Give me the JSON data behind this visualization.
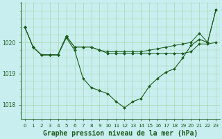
{
  "title": "Graphe pression niveau de la mer (hPa)",
  "bg_color": "#c8eef0",
  "line_color": "#1a5c1a",
  "grid_color": "#a8d8a8",
  "hours": [
    0,
    1,
    2,
    3,
    4,
    5,
    6,
    7,
    8,
    9,
    10,
    11,
    12,
    13,
    14,
    15,
    16,
    17,
    18,
    19,
    20,
    21,
    22,
    23
  ],
  "series_top": [
    1020.5,
    1019.85,
    1019.6,
    1019.6,
    1019.6,
    1020.2,
    1019.85,
    1019.85,
    1019.85,
    1019.75,
    1019.7,
    1019.7,
    1019.7,
    1019.7,
    1019.7,
    1019.75,
    1019.8,
    1019.85,
    1019.9,
    1019.95,
    1020.0,
    1020.3,
    1020.0,
    1021.05
  ],
  "series_mid": [
    1020.5,
    1019.85,
    1019.6,
    1019.6,
    1019.6,
    1020.2,
    1019.85,
    1019.85,
    1019.85,
    1019.75,
    1019.65,
    1019.65,
    1019.65,
    1019.65,
    1019.65,
    1019.65,
    1019.65,
    1019.65,
    1019.65,
    1019.65,
    1019.7,
    1019.95,
    1019.95,
    1020.0
  ],
  "series_main": [
    1020.5,
    1019.85,
    1019.6,
    1019.6,
    1019.6,
    1020.15,
    1019.75,
    1018.85,
    1018.55,
    1018.45,
    1018.35,
    1018.1,
    1017.9,
    1018.1,
    1018.2,
    1018.6,
    1018.85,
    1019.05,
    1019.15,
    1019.5,
    1019.9,
    1020.1,
    1020.0,
    1021.05
  ],
  "ylim": [
    1017.55,
    1021.3
  ],
  "yticks": [
    1018,
    1019,
    1020
  ],
  "tick_fontsize": 5.5,
  "title_fontsize": 7.0,
  "lw_main": 0.8,
  "lw_other": 0.7,
  "ms": 2.0
}
